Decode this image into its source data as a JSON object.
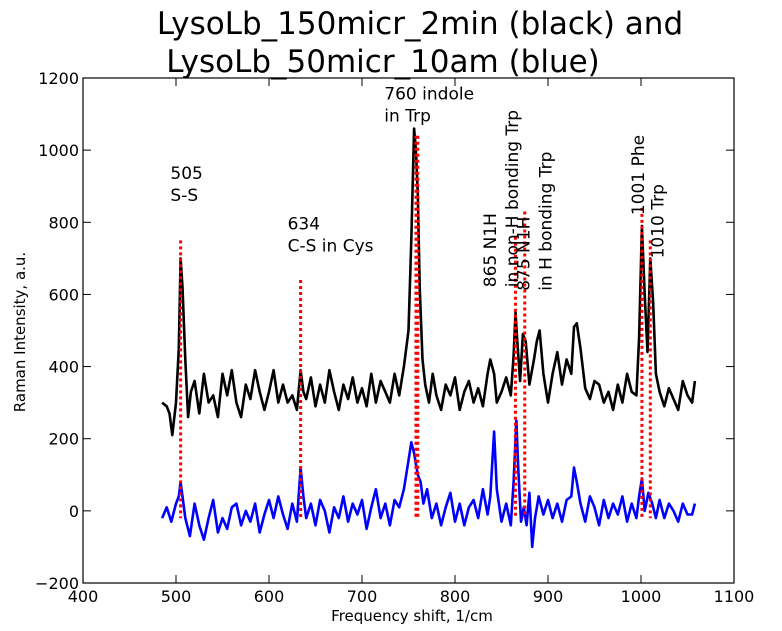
{
  "chart_data": {
    "type": "line",
    "title_lines": [
      "LysoLb_150micr_2min (black) and",
      "LysoLb_50micr_10am (blue)"
    ],
    "xlabel": "Frequency shift, 1/cm",
    "ylabel": "Raman Intensity, a.u.",
    "xlim": [
      400,
      1100
    ],
    "ylim": [
      -200,
      1200
    ],
    "x_ticks": [
      400,
      500,
      600,
      700,
      800,
      900,
      1000,
      1100
    ],
    "y_ticks": [
      -200,
      0,
      200,
      400,
      600,
      800,
      1000,
      1200
    ],
    "x_tick_labels": [
      "400",
      "500",
      "600",
      "700",
      "800",
      "900",
      "1000",
      "1100"
    ],
    "y_tick_labels": [
      "−200",
      "0",
      "200",
      "400",
      "600",
      "800",
      "1000",
      "1200"
    ],
    "grid": false,
    "series": [
      {
        "color": "#000000",
        "x": [
          485,
          490,
          493,
          496,
          500,
          503,
          505,
          507,
          510,
          513,
          516,
          520,
          525,
          530,
          535,
          540,
          545,
          550,
          555,
          560,
          565,
          570,
          575,
          580,
          585,
          590,
          595,
          600,
          605,
          610,
          615,
          620,
          625,
          630,
          634,
          637,
          640,
          645,
          650,
          655,
          660,
          665,
          670,
          675,
          680,
          685,
          690,
          695,
          700,
          705,
          710,
          715,
          720,
          725,
          730,
          735,
          740,
          745,
          750,
          753,
          756,
          758,
          760,
          762,
          765,
          768,
          772,
          776,
          780,
          785,
          790,
          795,
          800,
          805,
          810,
          815,
          820,
          825,
          830,
          835,
          838,
          842,
          845,
          850,
          855,
          860,
          863,
          865,
          867,
          870,
          873,
          876,
          880,
          885,
          888,
          891,
          895,
          900,
          905,
          910,
          915,
          920,
          925,
          928,
          931,
          935,
          940,
          945,
          950,
          955,
          960,
          965,
          970,
          975,
          980,
          985,
          990,
          995,
          998,
          1001,
          1004,
          1007,
          1010,
          1013,
          1016,
          1020,
          1025,
          1030,
          1035,
          1040,
          1045,
          1050,
          1055,
          1058
        ],
        "y": [
          300,
          290,
          270,
          210,
          300,
          450,
          700,
          620,
          420,
          260,
          330,
          360,
          270,
          380,
          300,
          320,
          260,
          380,
          320,
          390,
          300,
          260,
          350,
          310,
          390,
          330,
          280,
          330,
          390,
          300,
          350,
          300,
          320,
          280,
          390,
          330,
          310,
          370,
          290,
          350,
          300,
          390,
          330,
          280,
          350,
          310,
          370,
          300,
          340,
          290,
          380,
          300,
          360,
          330,
          300,
          380,
          320,
          400,
          500,
          750,
          1060,
          1000,
          880,
          620,
          420,
          350,
          300,
          380,
          320,
          280,
          350,
          320,
          370,
          280,
          330,
          360,
          300,
          340,
          290,
          380,
          420,
          380,
          300,
          330,
          370,
          320,
          430,
          550,
          470,
          360,
          490,
          470,
          350,
          420,
          470,
          500,
          380,
          300,
          380,
          440,
          350,
          420,
          380,
          510,
          520,
          450,
          340,
          310,
          360,
          350,
          300,
          330,
          280,
          350,
          300,
          380,
          330,
          320,
          480,
          790,
          600,
          440,
          700,
          580,
          380,
          330,
          290,
          340,
          310,
          280,
          360,
          320,
          300,
          360
        ]
      },
      {
        "color": "#0000ff",
        "x": [
          485,
          490,
          495,
          500,
          503,
          505,
          507,
          510,
          515,
          520,
          525,
          530,
          535,
          540,
          545,
          550,
          555,
          560,
          565,
          570,
          575,
          580,
          585,
          590,
          595,
          600,
          605,
          610,
          615,
          620,
          625,
          630,
          634,
          637,
          640,
          645,
          650,
          655,
          660,
          665,
          670,
          675,
          680,
          685,
          690,
          695,
          700,
          705,
          710,
          715,
          720,
          725,
          730,
          735,
          740,
          745,
          750,
          753,
          756,
          758,
          760,
          763,
          766,
          770,
          775,
          780,
          785,
          790,
          795,
          800,
          805,
          810,
          815,
          820,
          825,
          830,
          835,
          838,
          842,
          845,
          850,
          855,
          860,
          863,
          866,
          868,
          871,
          874,
          877,
          880,
          883,
          886,
          890,
          895,
          900,
          905,
          910,
          915,
          920,
          925,
          928,
          931,
          935,
          940,
          945,
          950,
          955,
          960,
          965,
          970,
          975,
          980,
          985,
          990,
          995,
          998,
          1001,
          1004,
          1008,
          1012,
          1016,
          1020,
          1025,
          1030,
          1035,
          1040,
          1045,
          1050,
          1055,
          1058
        ],
        "y": [
          -20,
          10,
          -30,
          20,
          40,
          80,
          40,
          -20,
          -70,
          20,
          -40,
          -80,
          -20,
          30,
          -60,
          -20,
          -50,
          10,
          20,
          -40,
          0,
          -30,
          20,
          -60,
          -10,
          30,
          -20,
          40,
          -10,
          -50,
          20,
          -30,
          120,
          40,
          -20,
          20,
          -40,
          30,
          0,
          -60,
          10,
          -20,
          40,
          -30,
          20,
          -10,
          30,
          -50,
          10,
          60,
          -20,
          20,
          -40,
          30,
          10,
          60,
          140,
          190,
          160,
          130,
          100,
          80,
          20,
          60,
          -20,
          20,
          -40,
          10,
          50,
          -30,
          20,
          -40,
          10,
          30,
          -20,
          60,
          -10,
          40,
          220,
          60,
          -30,
          20,
          -40,
          80,
          250,
          120,
          -30,
          10,
          -40,
          50,
          -100,
          -20,
          40,
          -10,
          30,
          -20,
          20,
          -30,
          30,
          40,
          120,
          80,
          20,
          -30,
          40,
          10,
          -40,
          30,
          -20,
          20,
          -10,
          40,
          -30,
          20,
          -20,
          40,
          90,
          0,
          50,
          20,
          -20,
          30,
          -20,
          20,
          0,
          -30,
          20,
          -10,
          -10,
          20
        ]
      }
    ],
    "reference_lines": [
      {
        "x": 505,
        "y_top": 750
      },
      {
        "x": 634,
        "y_top": 640
      },
      {
        "x": 758,
        "y_top": 1040
      },
      {
        "x": 760,
        "y_top": 1040
      },
      {
        "x": 865,
        "y_top": 760
      },
      {
        "x": 875,
        "y_top": 830
      },
      {
        "x": 1001,
        "y_top": 840
      },
      {
        "x": 1010,
        "y_top": 750
      }
    ],
    "reference_line_color": "#ff0000",
    "annotations": [
      {
        "lines": [
          "505",
          "S-S"
        ],
        "x": 494,
        "y": 920,
        "rotation": 0
      },
      {
        "lines": [
          "634",
          "C-S in Cys"
        ],
        "x": 620,
        "y": 780,
        "rotation": 0
      },
      {
        "lines": [
          "760 indole",
          "in Trp"
        ],
        "x": 724,
        "y": 1140,
        "rotation": 0
      },
      {
        "lines": [
          "865 N1H",
          "in non-H bonding Trp"
        ],
        "x": 844,
        "y": 620,
        "rotation": 90
      },
      {
        "lines": [
          "875 N1H",
          "in H bonding Trp"
        ],
        "x": 880,
        "y": 610,
        "rotation": 90
      },
      {
        "lines": [
          "1001 Phe"
        ],
        "x": 1003,
        "y": 820,
        "rotation": 90
      },
      {
        "lines": [
          "1010 Trp"
        ],
        "x": 1024,
        "y": 700,
        "rotation": 90
      }
    ]
  }
}
